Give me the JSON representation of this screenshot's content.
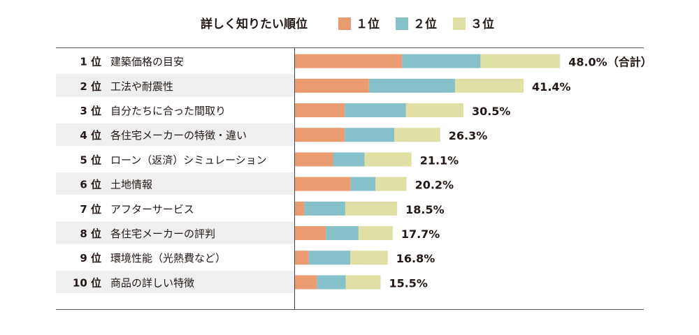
{
  "chart_data": {
    "type": "bar",
    "orientation": "horizontal",
    "stacked": true,
    "title": "詳しく知りたい順位",
    "legend_placement": "top",
    "series": [
      {
        "name": "１位",
        "color": "#ea9c70",
        "values": [
          19.4,
          13.4,
          9.0,
          9.0,
          6.9,
          10.1,
          1.7,
          5.6,
          2.5,
          4.0
        ]
      },
      {
        "name": "２位",
        "color": "#86c0c8",
        "values": [
          14.2,
          15.6,
          11.1,
          9.0,
          5.7,
          4.5,
          7.4,
          5.9,
          7.5,
          5.2
        ]
      },
      {
        "name": "３位",
        "color": "#e0dfa6",
        "values": [
          14.4,
          12.4,
          10.4,
          8.3,
          8.5,
          5.6,
          9.4,
          6.2,
          6.8,
          6.3
        ]
      }
    ],
    "ranks": [
      "1 位",
      "2 位",
      "3 位",
      "4 位",
      "5 位",
      "6 位",
      "7 位",
      "8 位",
      "9 位",
      "10 位"
    ],
    "categories": [
      "建築価格の目安",
      "工法や耐震性",
      "自分たちに合った間取り",
      "各住宅メーカーの特徴・違い",
      "ローン（返済）シミュレーション",
      "土地情報",
      "アフターサービス",
      "各住宅メーカーの評判",
      "環境性能（光熱費など）",
      "商品の詳しい特徴"
    ],
    "totals": [
      48.0,
      41.4,
      30.5,
      26.3,
      21.1,
      20.2,
      18.5,
      17.7,
      16.8,
      15.5
    ],
    "total_labels": [
      "48.0%（合計）",
      "41.4%",
      "30.5%",
      "26.3%",
      "21.1%",
      "20.2%",
      "18.5%",
      "17.7%",
      "16.8%",
      "15.5%"
    ],
    "row_shading": "#efefef"
  }
}
